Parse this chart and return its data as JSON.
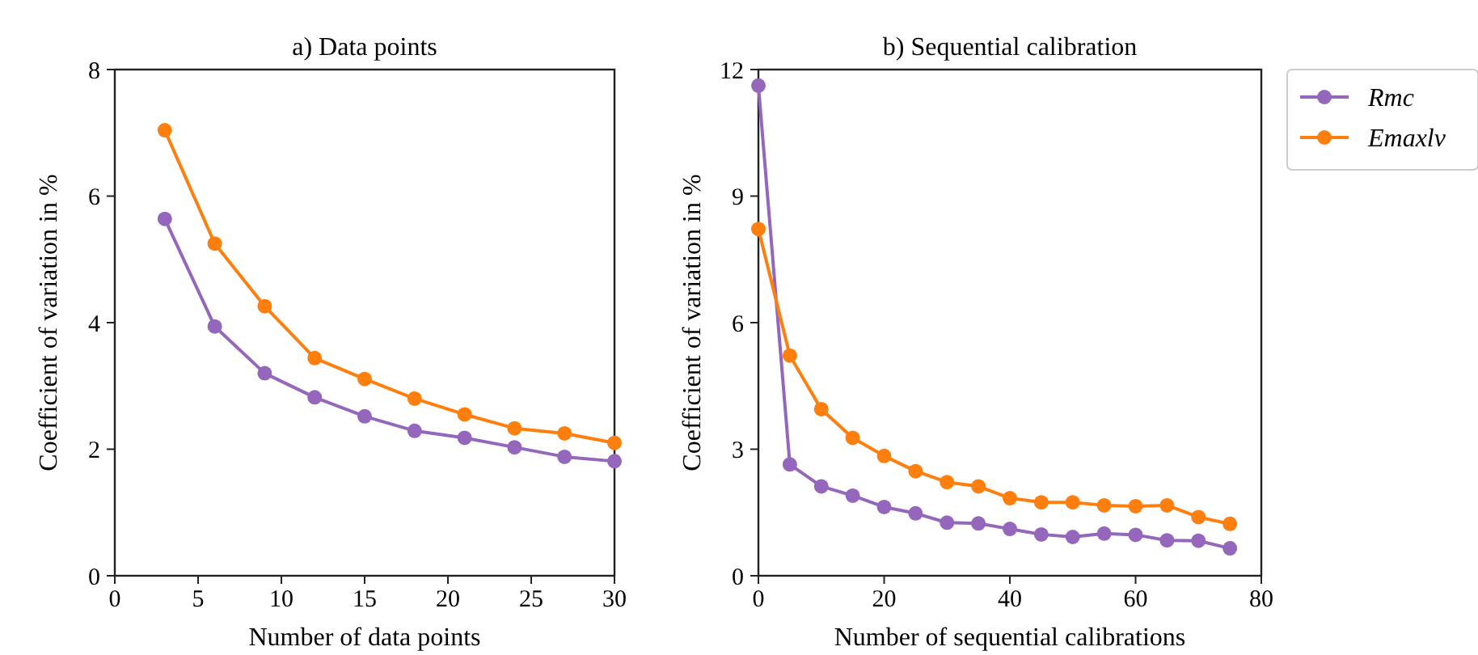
{
  "chart_data": [
    {
      "type": "line",
      "title": "a) Data points",
      "xlabel": "Number of data points",
      "ylabel": "Coefficient of variation in %",
      "x": [
        3,
        6,
        9,
        12,
        15,
        18,
        21,
        24,
        27,
        30
      ],
      "xlim": [
        0,
        30
      ],
      "xticks": [
        0,
        5,
        10,
        15,
        20,
        25,
        30
      ],
      "ylim": [
        0,
        8
      ],
      "yticks": [
        0,
        2,
        4,
        6,
        8
      ],
      "marker": "circle",
      "line_style": "solid",
      "grid": false,
      "legend": false,
      "series": [
        {
          "color": "#9467bd",
          "values": [
            5.64,
            3.94,
            3.2,
            2.82,
            2.52,
            2.29,
            2.18,
            2.03,
            1.88,
            1.81
          ]
        },
        {
          "color": "#ff7f0e",
          "values": [
            7.04,
            5.25,
            4.26,
            3.44,
            3.11,
            2.8,
            2.55,
            2.33,
            2.25,
            2.1
          ]
        }
      ]
    },
    {
      "type": "line",
      "title": "b) Sequential calibration",
      "xlabel": "Number of sequential calibrations",
      "ylabel": "Coefficient of variation in %",
      "x": [
        0,
        5,
        10,
        15,
        20,
        25,
        30,
        35,
        40,
        45,
        50,
        55,
        60,
        65,
        70,
        75
      ],
      "xlim": [
        0,
        80
      ],
      "xticks": [
        0,
        20,
        40,
        60,
        80
      ],
      "ylim": [
        0,
        12
      ],
      "yticks": [
        0,
        3,
        6,
        9,
        12
      ],
      "marker": "circle",
      "line_style": "solid",
      "grid": false,
      "legend": "right",
      "series": [
        {
          "name": "Rmc",
          "color": "#9467bd",
          "values": [
            11.62,
            2.64,
            2.12,
            1.9,
            1.63,
            1.48,
            1.26,
            1.24,
            1.11,
            0.98,
            0.92,
            1.0,
            0.97,
            0.84,
            0.83,
            0.65
          ]
        },
        {
          "name": "Emaxlv",
          "color": "#ff7f0e",
          "values": [
            8.22,
            5.22,
            3.95,
            3.27,
            2.84,
            2.48,
            2.22,
            2.12,
            1.84,
            1.74,
            1.74,
            1.67,
            1.65,
            1.67,
            1.39,
            1.23
          ]
        }
      ]
    }
  ]
}
